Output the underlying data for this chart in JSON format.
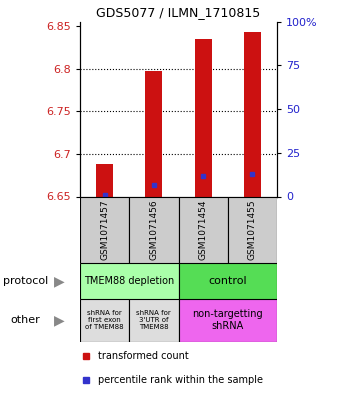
{
  "title": "GDS5077 / ILMN_1710815",
  "samples": [
    "GSM1071457",
    "GSM1071456",
    "GSM1071454",
    "GSM1071455"
  ],
  "ylim": [
    6.65,
    6.855
  ],
  "yticks_left": [
    6.65,
    6.7,
    6.75,
    6.8,
    6.85
  ],
  "yticks_right_vals": [
    0,
    25,
    50,
    75,
    100
  ],
  "yticks_right_labels": [
    "0",
    "25",
    "50",
    "75",
    "100%"
  ],
  "bar_base": 6.65,
  "bar_tops": [
    6.688,
    6.797,
    6.835,
    6.843
  ],
  "blue_y": [
    6.652,
    6.663,
    6.674,
    6.676
  ],
  "bar_color": "#cc1111",
  "blue_color": "#3333cc",
  "protocol_labels": [
    "TMEM88 depletion",
    "control"
  ],
  "protocol_color_left": "#aaffaa",
  "protocol_color_right": "#55dd55",
  "other_labels": [
    "shRNA for\nfirst exon\nof TMEM88",
    "shRNA for\n3'UTR of\nTMEM88",
    "non-targetting\nshRNA"
  ],
  "other_color_gray": "#dddddd",
  "other_color_pink": "#ee66ee",
  "legend_red": "transformed count",
  "legend_blue": "percentile rank within the sample",
  "xlabel_protocol": "protocol",
  "xlabel_other": "other",
  "bar_width": 0.35,
  "tick_label_color_left": "#cc2222",
  "tick_label_color_right": "#2222cc",
  "sample_box_color": "#cccccc",
  "grid_ticks": [
    6.7,
    6.75,
    6.8
  ]
}
